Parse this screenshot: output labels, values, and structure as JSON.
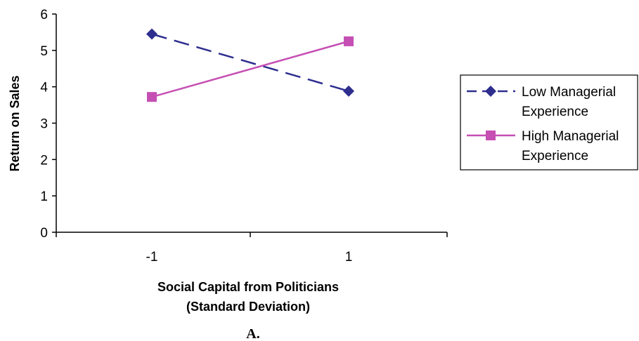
{
  "chart_data": {
    "type": "line",
    "categories": [
      "-1",
      "1"
    ],
    "series": [
      {
        "name": "Low Managerial Experience",
        "values": [
          5.45,
          3.88
        ],
        "color": "#2e2e8f",
        "marker": "diamond",
        "dash": "dashed"
      },
      {
        "name": "High Managerial Experience",
        "values": [
          3.72,
          5.25
        ],
        "color": "#c64fb4",
        "marker": "square",
        "dash": "solid"
      }
    ],
    "legend_lines": [
      [
        "Low Managerial",
        "Experience"
      ],
      [
        "High Managerial",
        "Experience"
      ]
    ],
    "yticks": [
      "0",
      "1",
      "2",
      "3",
      "4",
      "5",
      "6"
    ],
    "ylim": [
      0,
      6
    ],
    "xlabel_lines": [
      "Social Capital from Politicians",
      "(Standard Deviation)"
    ],
    "ylabel": "Return on Sales",
    "panel_label": "A.",
    "legend_position": "right",
    "grid": false
  }
}
